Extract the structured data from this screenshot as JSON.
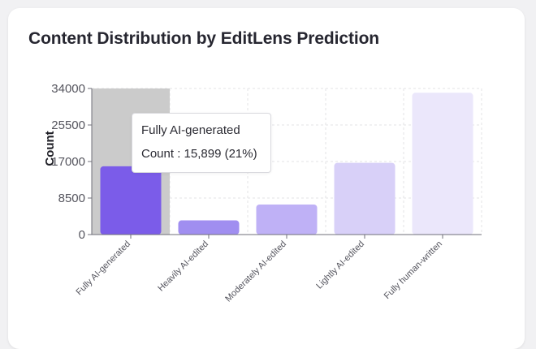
{
  "title": "Content Distribution by EditLens Prediction",
  "tooltip": {
    "title": "Fully AI-generated",
    "label": "Count",
    "value": "15,899 (21%)"
  },
  "chart_data": {
    "type": "bar",
    "title": "Content Distribution by EditLens Prediction",
    "xlabel": "",
    "ylabel": "Count",
    "ylim": [
      0,
      34000
    ],
    "yticks": [
      "34000",
      "25500",
      "17000",
      "8500",
      "0"
    ],
    "ytick_values": [
      34000,
      25500,
      17000,
      8500,
      0
    ],
    "grid": true,
    "categories": [
      "Fully AI-generated",
      "Heavily AI-edited",
      "Moderately AI-edited",
      "Lightly AI-edited",
      "Fully human-written"
    ],
    "values": [
      15899,
      3300,
      7000,
      16700,
      33000
    ],
    "colors": [
      "#7b5ce9",
      "#a08ef0",
      "#bfb1f6",
      "#d8d0f8",
      "#ebe7fb"
    ],
    "highlight_index": 0,
    "highlight_color": "#cbcbcb"
  }
}
